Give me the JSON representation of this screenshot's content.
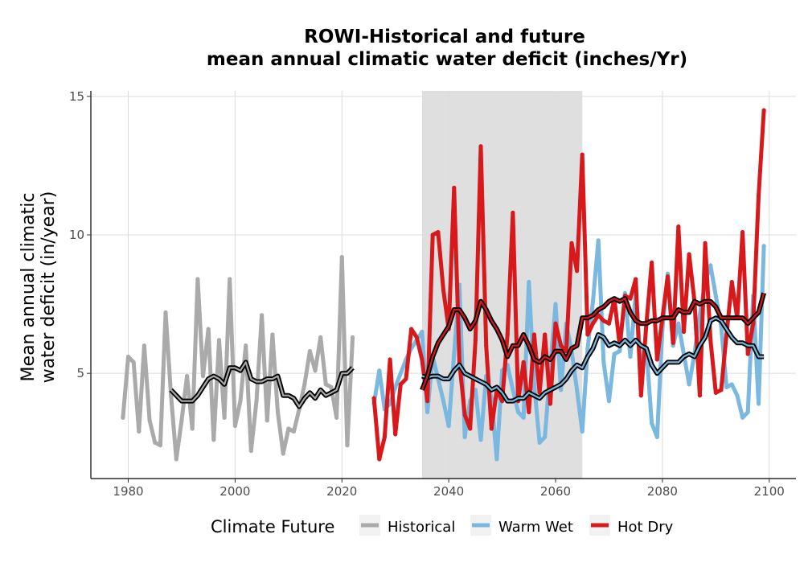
{
  "chart_data": {
    "type": "line",
    "title": "ROWI-Historical and future",
    "subtitle": "mean annual climatic water deficit (inches/Yr)",
    "xlabel": "",
    "ylabel_line1": "Mean annual climatic",
    "ylabel_line2": "water deficit (in/year)",
    "xlim": [
      1973,
      2105
    ],
    "ylim": [
      1.2,
      15.2
    ],
    "x_ticks": [
      1980,
      2000,
      2020,
      2040,
      2060,
      2080,
      2100
    ],
    "y_ticks": [
      5,
      10,
      15
    ],
    "grid": true,
    "shaded_period": [
      2035,
      2065
    ],
    "shaded_color": "#dddddd",
    "legend": {
      "title": "Climate Future",
      "placement": "bottom",
      "entries": [
        {
          "label": "Historical",
          "color": "#aaaaaa"
        },
        {
          "label": "Warm Wet",
          "color": "#7ab8e0"
        },
        {
          "label": "Hot Dry",
          "color": "#d7191c"
        }
      ]
    },
    "series": [
      {
        "name": "Historical",
        "color": "#aaaaaa",
        "x": [
          1979,
          1980,
          1981,
          1982,
          1983,
          1984,
          1985,
          1986,
          1987,
          1988,
          1989,
          1990,
          1991,
          1992,
          1993,
          1994,
          1995,
          1996,
          1997,
          1998,
          1999,
          2000,
          2001,
          2002,
          2003,
          2004,
          2005,
          2006,
          2007,
          2008,
          2009,
          2010,
          2011,
          2012,
          2013,
          2014,
          2015,
          2016,
          2017,
          2018,
          2019,
          2020,
          2021,
          2022
        ],
        "y": [
          3.4,
          5.6,
          5.4,
          2.9,
          6.0,
          3.3,
          2.5,
          2.4,
          7.2,
          4.2,
          1.9,
          3.3,
          4.9,
          3.0,
          8.4,
          4.9,
          6.6,
          2.6,
          6.2,
          3.4,
          8.4,
          3.1,
          4.0,
          6.0,
          2.2,
          4.0,
          7.1,
          3.3,
          6.4,
          3.6,
          2.1,
          3.0,
          2.9,
          3.7,
          4.6,
          5.8,
          5.1,
          6.3,
          4.6,
          4.5,
          3.4,
          9.2,
          2.4,
          6.3
        ]
      },
      {
        "name": "Historical rolling mean",
        "color": "#000000",
        "x": [
          1988,
          1989,
          1990,
          1991,
          1992,
          1993,
          1994,
          1995,
          1996,
          1997,
          1998,
          1999,
          2000,
          2001,
          2002,
          2003,
          2004,
          2005,
          2006,
          2007,
          2008,
          2009,
          2010,
          2011,
          2012,
          2013,
          2014,
          2015,
          2016,
          2017,
          2018,
          2019,
          2020,
          2021,
          2022
        ],
        "y": [
          4.4,
          4.2,
          4.0,
          4.0,
          4.0,
          4.2,
          4.5,
          4.8,
          4.9,
          4.8,
          4.6,
          5.2,
          5.2,
          5.1,
          5.4,
          4.8,
          4.7,
          4.7,
          4.8,
          4.8,
          4.9,
          4.2,
          4.2,
          4.1,
          3.8,
          4.1,
          4.3,
          4.1,
          4.4,
          4.2,
          4.3,
          4.4,
          5.0,
          5.0,
          5.2
        ]
      },
      {
        "name": "Warm Wet",
        "color": "#7ab8e0",
        "x": [
          2026,
          2027,
          2028,
          2029,
          2030,
          2031,
          2032,
          2033,
          2034,
          2035,
          2036,
          2037,
          2038,
          2039,
          2040,
          2041,
          2042,
          2043,
          2044,
          2045,
          2046,
          2047,
          2048,
          2049,
          2050,
          2051,
          2052,
          2053,
          2054,
          2055,
          2056,
          2057,
          2058,
          2059,
          2060,
          2061,
          2062,
          2063,
          2064,
          2065,
          2066,
          2067,
          2068,
          2069,
          2070,
          2071,
          2072,
          2073,
          2074,
          2075,
          2076,
          2077,
          2078,
          2079,
          2080,
          2081,
          2082,
          2083,
          2084,
          2085,
          2086,
          2087,
          2088,
          2089,
          2090,
          2091,
          2092,
          2093,
          2094,
          2095,
          2096,
          2097,
          2098,
          2099
        ],
        "y": [
          3.9,
          5.1,
          3.7,
          3.9,
          4.5,
          5.0,
          5.5,
          5.9,
          6.2,
          6.5,
          3.6,
          5.6,
          4.8,
          4.0,
          3.1,
          5.7,
          8.2,
          2.7,
          4.0,
          4.4,
          2.6,
          4.9,
          4.1,
          1.9,
          5.1,
          5.3,
          4.4,
          3.6,
          3.4,
          8.3,
          4.6,
          2.5,
          2.7,
          5.2,
          7.5,
          4.4,
          6.8,
          5.8,
          4.4,
          2.9,
          5.9,
          7.6,
          9.8,
          5.4,
          4.0,
          5.7,
          5.8,
          7.9,
          5.6,
          7.9,
          5.3,
          5.9,
          3.2,
          2.7,
          6.6,
          8.6,
          6.0,
          6.8,
          5.7,
          4.6,
          5.7,
          7.1,
          8.3,
          8.9,
          7.8,
          6.7,
          4.5,
          4.6,
          4.2,
          3.4,
          3.6,
          7.8,
          3.9,
          9.6
        ]
      },
      {
        "name": "Warm Wet rolling mean",
        "color": "#000000",
        "x": [
          2035,
          2036,
          2037,
          2038,
          2039,
          2040,
          2041,
          2042,
          2043,
          2044,
          2045,
          2046,
          2047,
          2048,
          2049,
          2050,
          2051,
          2052,
          2053,
          2054,
          2055,
          2056,
          2057,
          2058,
          2059,
          2060,
          2061,
          2062,
          2063,
          2064,
          2065,
          2066,
          2067,
          2068,
          2069,
          2070,
          2071,
          2072,
          2073,
          2074,
          2075,
          2076,
          2077,
          2078,
          2079,
          2080,
          2081,
          2082,
          2083,
          2084,
          2085,
          2086,
          2087,
          2088,
          2089,
          2090,
          2091,
          2092,
          2093,
          2094,
          2095,
          2096,
          2097,
          2098,
          2099
        ],
        "y": [
          4.9,
          4.85,
          4.9,
          4.9,
          4.8,
          4.8,
          5.1,
          5.3,
          5.0,
          4.9,
          4.8,
          4.7,
          4.6,
          4.4,
          4.5,
          4.3,
          4.0,
          4.0,
          4.1,
          4.1,
          4.3,
          4.2,
          4.1,
          4.3,
          4.4,
          4.5,
          4.6,
          4.8,
          5.1,
          5.3,
          5.2,
          5.6,
          5.9,
          6.4,
          6.3,
          6.0,
          6.1,
          6.0,
          6.2,
          6.0,
          6.2,
          6.0,
          5.9,
          5.3,
          5.0,
          5.2,
          5.4,
          5.4,
          5.4,
          5.6,
          5.7,
          5.6,
          6.0,
          6.3,
          6.9,
          7.0,
          6.9,
          6.6,
          6.3,
          6.1,
          6.1,
          6.0,
          6.0,
          5.6,
          5.6
        ]
      },
      {
        "name": "Hot Dry",
        "color": "#d7191c",
        "x": [
          2026,
          2027,
          2028,
          2029,
          2030,
          2031,
          2032,
          2033,
          2034,
          2035,
          2036,
          2037,
          2038,
          2039,
          2040,
          2041,
          2042,
          2043,
          2044,
          2045,
          2046,
          2047,
          2048,
          2049,
          2050,
          2051,
          2052,
          2053,
          2054,
          2055,
          2056,
          2057,
          2058,
          2059,
          2060,
          2061,
          2062,
          2063,
          2064,
          2065,
          2066,
          2067,
          2068,
          2069,
          2070,
          2071,
          2072,
          2073,
          2074,
          2075,
          2076,
          2077,
          2078,
          2079,
          2080,
          2081,
          2082,
          2083,
          2084,
          2085,
          2086,
          2087,
          2088,
          2089,
          2090,
          2091,
          2092,
          2093,
          2094,
          2095,
          2096,
          2097,
          2098,
          2099
        ],
        "y": [
          4.1,
          1.9,
          2.7,
          5.5,
          2.8,
          4.6,
          4.8,
          6.6,
          6.3,
          5.5,
          4.0,
          10.0,
          10.1,
          8.0,
          6.6,
          11.7,
          5.4,
          3.5,
          3.0,
          6.2,
          13.2,
          6.0,
          3.0,
          4.4,
          4.0,
          6.4,
          10.8,
          4.0,
          5.4,
          3.6,
          6.4,
          4.3,
          6.4,
          3.9,
          6.8,
          6.0,
          5.8,
          9.7,
          8.7,
          12.9,
          6.4,
          6.8,
          7.1,
          6.9,
          6.8,
          7.7,
          6.0,
          7.8,
          7.7,
          8.4,
          4.2,
          6.8,
          9.0,
          5.5,
          7.0,
          8.5,
          6.1,
          10.3,
          6.5,
          9.3,
          7.6,
          4.2,
          9.7,
          6.2,
          4.3,
          4.4,
          6.4,
          8.3,
          7.0,
          10.1,
          5.7,
          6.8,
          11.4,
          14.5
        ]
      },
      {
        "name": "Hot Dry rolling mean",
        "color": "#000000",
        "x": [
          2035,
          2036,
          2037,
          2038,
          2039,
          2040,
          2041,
          2042,
          2043,
          2044,
          2045,
          2046,
          2047,
          2048,
          2049,
          2050,
          2051,
          2052,
          2053,
          2054,
          2055,
          2056,
          2057,
          2058,
          2059,
          2060,
          2061,
          2062,
          2063,
          2064,
          2065,
          2066,
          2067,
          2068,
          2069,
          2070,
          2071,
          2072,
          2073,
          2074,
          2075,
          2076,
          2077,
          2078,
          2079,
          2080,
          2081,
          2082,
          2083,
          2084,
          2085,
          2086,
          2087,
          2088,
          2089,
          2090,
          2091,
          2092,
          2093,
          2094,
          2095,
          2096,
          2097,
          2098,
          2099
        ],
        "y": [
          4.4,
          4.9,
          5.6,
          6.1,
          6.4,
          6.7,
          7.3,
          7.3,
          7.0,
          6.6,
          6.9,
          7.6,
          7.3,
          6.9,
          6.6,
          6.2,
          5.6,
          6.0,
          6.0,
          6.4,
          6.0,
          5.5,
          5.4,
          5.6,
          5.5,
          5.8,
          5.8,
          5.5,
          5.9,
          6.0,
          7.0,
          7.0,
          7.1,
          7.3,
          7.4,
          7.6,
          7.7,
          7.6,
          7.7,
          7.2,
          6.9,
          6.8,
          6.8,
          6.9,
          6.9,
          7.0,
          7.0,
          7.0,
          7.3,
          7.2,
          7.2,
          7.6,
          7.5,
          7.6,
          7.6,
          7.4,
          7.0,
          7.0,
          7.0,
          7.0,
          7.0,
          6.8,
          7.0,
          7.2,
          7.9
        ]
      }
    ]
  }
}
